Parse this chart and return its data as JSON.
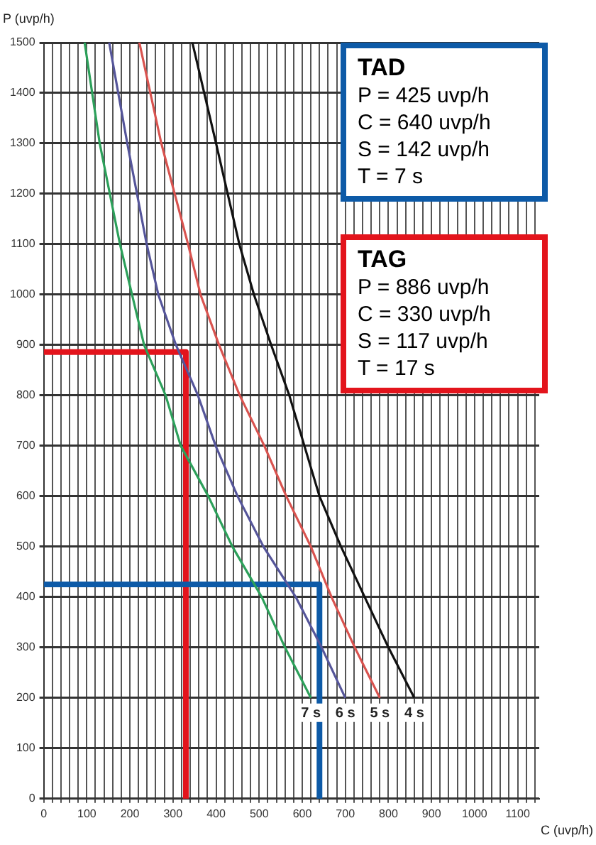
{
  "chart_data": {
    "type": "line",
    "xlabel": "C (uvp/h)",
    "ylabel": "P (uvp/h)",
    "xlim": [
      0,
      1150
    ],
    "ylim": [
      0,
      1500
    ],
    "xticks": [
      0,
      {
        "value": 20,
        "label": null
      },
      {
        "value": 40,
        "label": null
      },
      {
        "value": 60,
        "label": null
      },
      {
        "value": 80,
        "label": null
      },
      100,
      {
        "value": 120,
        "label": null
      },
      {
        "value": 140,
        "label": null
      },
      {
        "value": 160,
        "label": null
      },
      {
        "value": 180,
        "label": null
      },
      200,
      {
        "value": 220,
        "label": null
      },
      {
        "value": 240,
        "label": null
      },
      {
        "value": 260,
        "label": null
      },
      {
        "value": 280,
        "label": null
      },
      300,
      {
        "value": 320,
        "label": null
      },
      {
        "value": 340,
        "label": null
      },
      {
        "value": 360,
        "label": null
      },
      {
        "value": 380,
        "label": null
      },
      400,
      {
        "value": 420,
        "label": null
      },
      {
        "value": 440,
        "label": null
      },
      {
        "value": 460,
        "label": null
      },
      {
        "value": 480,
        "label": null
      },
      500,
      {
        "value": 520,
        "label": null
      },
      {
        "value": 540,
        "label": null
      },
      {
        "value": 560,
        "label": null
      },
      {
        "value": 580,
        "label": null
      },
      600,
      {
        "value": 620,
        "label": null
      },
      {
        "value": 640,
        "label": null
      },
      {
        "value": 660,
        "label": null
      },
      {
        "value": 680,
        "label": null
      },
      700,
      {
        "value": 720,
        "label": null
      },
      {
        "value": 740,
        "label": null
      },
      {
        "value": 760,
        "label": null
      },
      {
        "value": 780,
        "label": null
      },
      800,
      {
        "value": 820,
        "label": null
      },
      {
        "value": 840,
        "label": null
      },
      {
        "value": 860,
        "label": null
      },
      {
        "value": 880,
        "label": null
      },
      900,
      {
        "value": 920,
        "label": null
      },
      {
        "value": 940,
        "label": null
      },
      {
        "value": 960,
        "label": null
      },
      {
        "value": 980,
        "label": null
      },
      1000,
      {
        "value": 1020,
        "label": null
      },
      {
        "value": 1040,
        "label": null
      },
      {
        "value": 1060,
        "label": null
      },
      {
        "value": 1080,
        "label": null
      },
      1100,
      {
        "value": 1120,
        "label": null
      },
      {
        "value": 1140,
        "label": null
      }
    ],
    "yticks": [
      0,
      100,
      200,
      300,
      400,
      500,
      600,
      700,
      800,
      900,
      1000,
      1100,
      1200,
      1300,
      1400,
      1500
    ],
    "grid": true,
    "legend": false,
    "marker": "none",
    "line_style": "solid",
    "series": [
      {
        "name": "7 s",
        "color": "#2ca05a",
        "x": [
          95,
          130,
          177,
          205,
          233,
          283,
          318,
          382,
          438,
          506,
          560,
          620
        ],
        "values": [
          1500,
          1300,
          1100,
          1000,
          900,
          800,
          700,
          600,
          500,
          400,
          300,
          200
        ]
      },
      {
        "name": "6 s",
        "color": "#55559a",
        "x": [
          152,
          194,
          239,
          266,
          307,
          358,
          399,
          450,
          510,
          585,
          645,
          700
        ],
        "values": [
          1500,
          1300,
          1100,
          1000,
          900,
          800,
          700,
          600,
          500,
          400,
          300,
          200
        ]
      },
      {
        "name": "5 s",
        "color": "#d9534f",
        "x": [
          222,
          273,
          335,
          364,
          407,
          455,
          512,
          563,
          620,
          668,
          722,
          780
        ],
        "values": [
          1500,
          1300,
          1100,
          1000,
          900,
          800,
          700,
          600,
          500,
          400,
          300,
          200
        ]
      },
      {
        "name": "4 s",
        "color": "#111111",
        "x": [
          345,
          400,
          454,
          488,
          528,
          570,
          605,
          640,
          690,
          745,
          800,
          860
        ],
        "values": [
          1500,
          1300,
          1100,
          1000,
          900,
          800,
          700,
          600,
          500,
          400,
          300,
          200
        ]
      },
      {
        "color": "#0d5aa7",
        "x": [
          0,
          640,
          640
        ],
        "values": [
          425,
          425,
          0
        ]
      },
      {
        "color": "#e3141c",
        "x": [
          0,
          330,
          330
        ],
        "values": [
          886,
          886,
          0
        ]
      }
    ],
    "annotations": [
      "TAD\nP = 425 uvp/h\nC = 640 uvp/h\nS = 142 uvp/h\nT = 7 s",
      "TAG\nP = 886 uvp/h\nC = 330 uvp/h\nS = 117 uvp/h\nT = 17 s"
    ]
  }
}
